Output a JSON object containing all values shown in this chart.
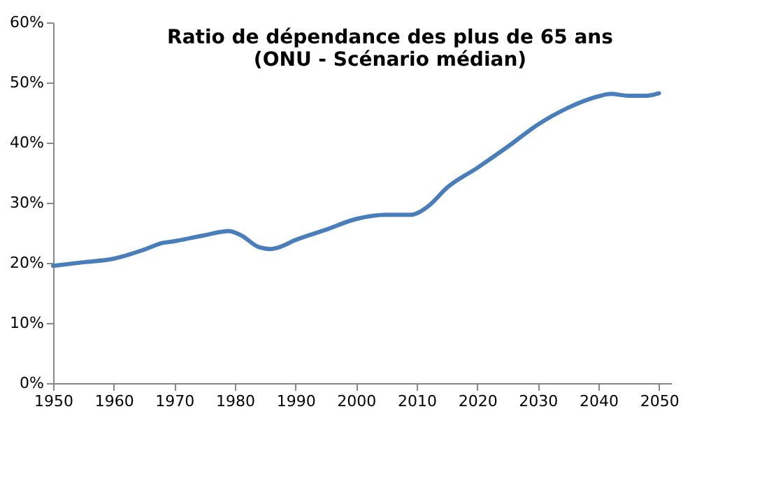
{
  "chart_data": {
    "type": "line",
    "title": "Ratio de dépendance des plus de 65 ans\n(ONU - Scénario médian)",
    "x": [
      1950,
      1955,
      1960,
      1965,
      1968,
      1970,
      1975,
      1979,
      1981,
      1984,
      1986,
      1987,
      1990,
      1995,
      2000,
      2005,
      2009,
      2012,
      2015,
      2020,
      2025,
      2030,
      2035,
      2040,
      2042,
      2045,
      2048,
      2050
    ],
    "series": [
      {
        "color": "#4a7ebb",
        "values": [
          19.5,
          20.1,
          20.7,
          22.2,
          23.3,
          23.6,
          24.6,
          25.3,
          24.6,
          22.6,
          22.3,
          22.5,
          23.8,
          25.5,
          27.3,
          28.0,
          28.0,
          29.5,
          32.5,
          35.8,
          39.3,
          43.0,
          45.8,
          47.7,
          48.1,
          47.8,
          47.8,
          48.2
        ]
      }
    ],
    "xlim": [
      1950,
      2052
    ],
    "xticks": [
      1950,
      1960,
      1970,
      1980,
      1990,
      2000,
      2010,
      2020,
      2030,
      2040,
      2050
    ],
    "ylim": [
      0,
      60
    ],
    "yticks": [
      {
        "value": 0,
        "label": "0%"
      },
      {
        "value": 10,
        "label": "10%"
      },
      {
        "value": 20,
        "label": "20%"
      },
      {
        "value": 30,
        "label": "30%"
      },
      {
        "value": 40,
        "label": "40%"
      },
      {
        "value": 50,
        "label": "50%"
      },
      {
        "value": 60,
        "label": "60%"
      }
    ],
    "grid": false,
    "legend": false,
    "marker": "none",
    "line_style": "solid"
  }
}
